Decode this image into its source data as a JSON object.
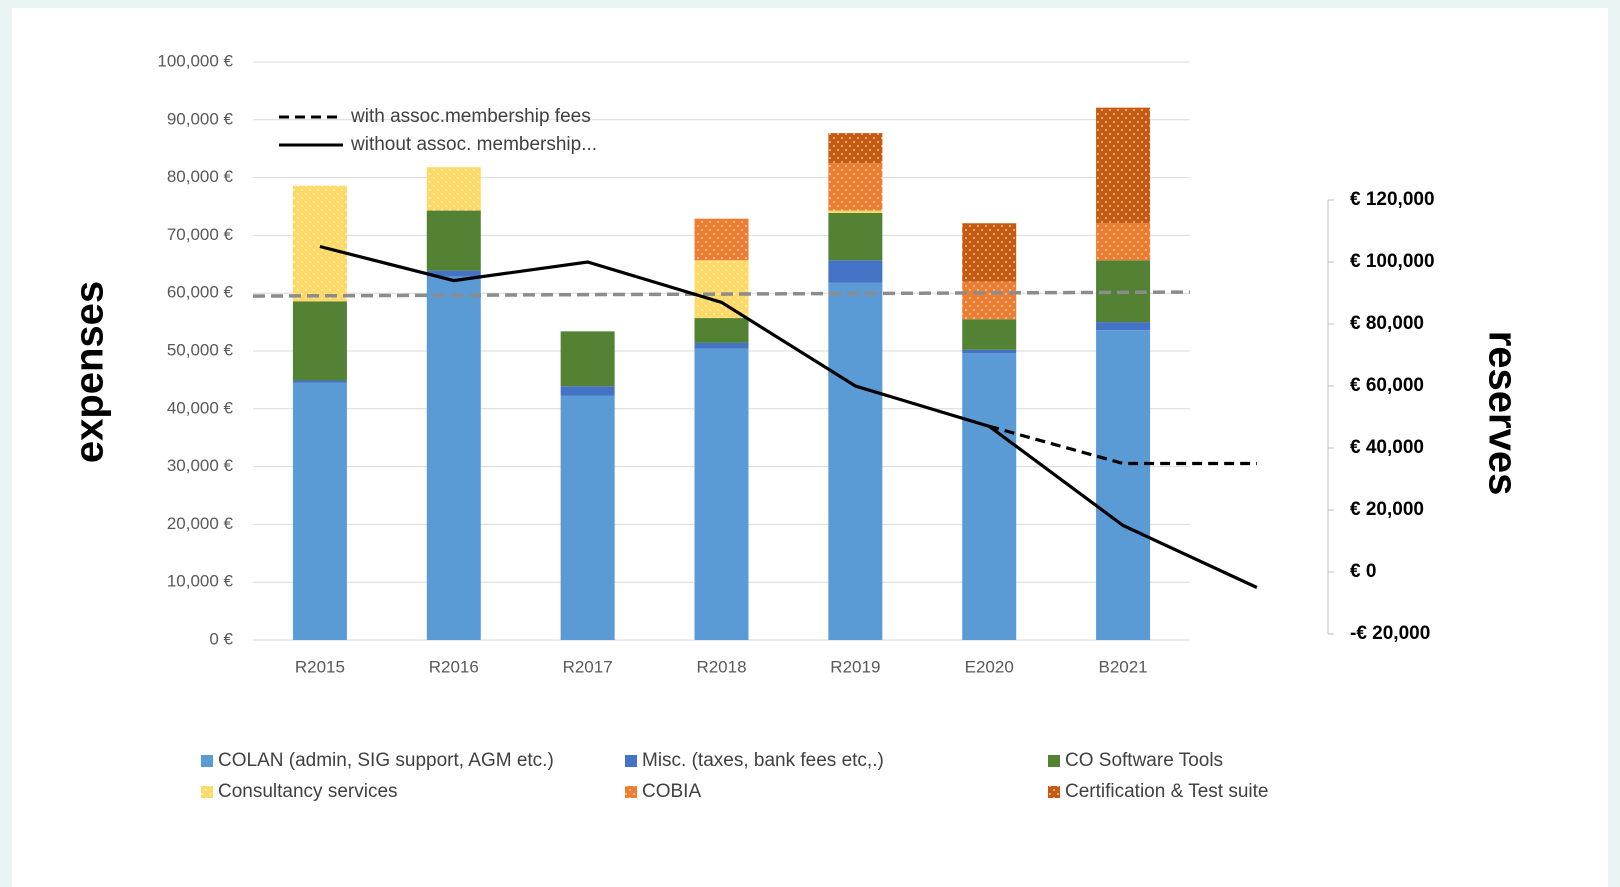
{
  "chart_data": {
    "type": "bar",
    "stacked": true,
    "categories": [
      "R2015",
      "R2016",
      "R2017",
      "R2018",
      "R2019",
      "E2020",
      "B2021",
      null
    ],
    "y_label": "expenses",
    "y2_label": "reserves",
    "ylim": [
      0,
      100000
    ],
    "yticks": [
      {
        "value": 0,
        "label": "0 €"
      },
      {
        "value": 10000,
        "label": "10,000 €"
      },
      {
        "value": 20000,
        "label": "20,000 €"
      },
      {
        "value": 30000,
        "label": "30,000 €"
      },
      {
        "value": 40000,
        "label": "40,000 €"
      },
      {
        "value": 50000,
        "label": "50,000 €"
      },
      {
        "value": 60000,
        "label": "60,000 €"
      },
      {
        "value": 70000,
        "label": "70,000 €"
      },
      {
        "value": 80000,
        "label": "80,000 €"
      },
      {
        "value": 90000,
        "label": "90,000 €"
      },
      {
        "value": 100000,
        "label": "100,000 €"
      }
    ],
    "y2lim": [
      -20000,
      120000
    ],
    "y2ticks": [
      {
        "value": -20000,
        "label": "-€ 20,000"
      },
      {
        "value": 0,
        "label": "€ 0"
      },
      {
        "value": 20000,
        "label": "€ 20,000"
      },
      {
        "value": 40000,
        "label": "€ 40,000"
      },
      {
        "value": 60000,
        "label": "€ 60,000"
      },
      {
        "value": 80000,
        "label": "€ 80,000"
      },
      {
        "value": 100000,
        "label": "€ 100,000"
      },
      {
        "value": 120000,
        "label": "€ 120,000"
      }
    ],
    "grid": true,
    "series": [
      {
        "name": "COLAN (admin, SIG support, AGM etc.)",
        "color": "#5b9bd5",
        "dotted": false,
        "values": [
          44500,
          62900,
          42300,
          50400,
          61800,
          49600,
          53600,
          null
        ]
      },
      {
        "name": "Misc. (taxes, bank fees etc,.)",
        "color": "#4472c4",
        "dotted": false,
        "values": [
          400,
          1000,
          1600,
          1000,
          3900,
          600,
          1400,
          null
        ]
      },
      {
        "name": "CO Software Tools",
        "color": "#548235",
        "dotted": false,
        "values": [
          13700,
          10400,
          9500,
          4300,
          8200,
          5300,
          10700,
          null
        ]
      },
      {
        "name": "Consultancy services",
        "color": "#ffd966",
        "dotted": true,
        "values": [
          20000,
          7500,
          0,
          10000,
          400,
          0,
          0,
          null
        ]
      },
      {
        "name": "COBIA",
        "color": "#ed7d31",
        "dotted": true,
        "values": [
          0,
          0,
          0,
          7200,
          8200,
          6500,
          6400,
          null
        ]
      },
      {
        "name": "Certification & Test suite",
        "color": "#c55a11",
        "dotted": true,
        "values": [
          0,
          0,
          0,
          0,
          5200,
          10100,
          20000,
          null
        ]
      }
    ],
    "line_series": [
      {
        "name": "with assoc.membership fees",
        "color": "#000000",
        "dashed": true,
        "axis": "y2",
        "values": [
          null,
          null,
          null,
          null,
          null,
          47000,
          35000,
          35000
        ]
      },
      {
        "name": "without assoc. membership...",
        "color": "#000000",
        "dashed": false,
        "axis": "y2",
        "values": [
          105000,
          94000,
          100000,
          87000,
          60000,
          47000,
          15000,
          -5000
        ]
      }
    ],
    "trend_line": {
      "color": "#8c8c8c",
      "values": [
        59500,
        60200
      ]
    }
  }
}
